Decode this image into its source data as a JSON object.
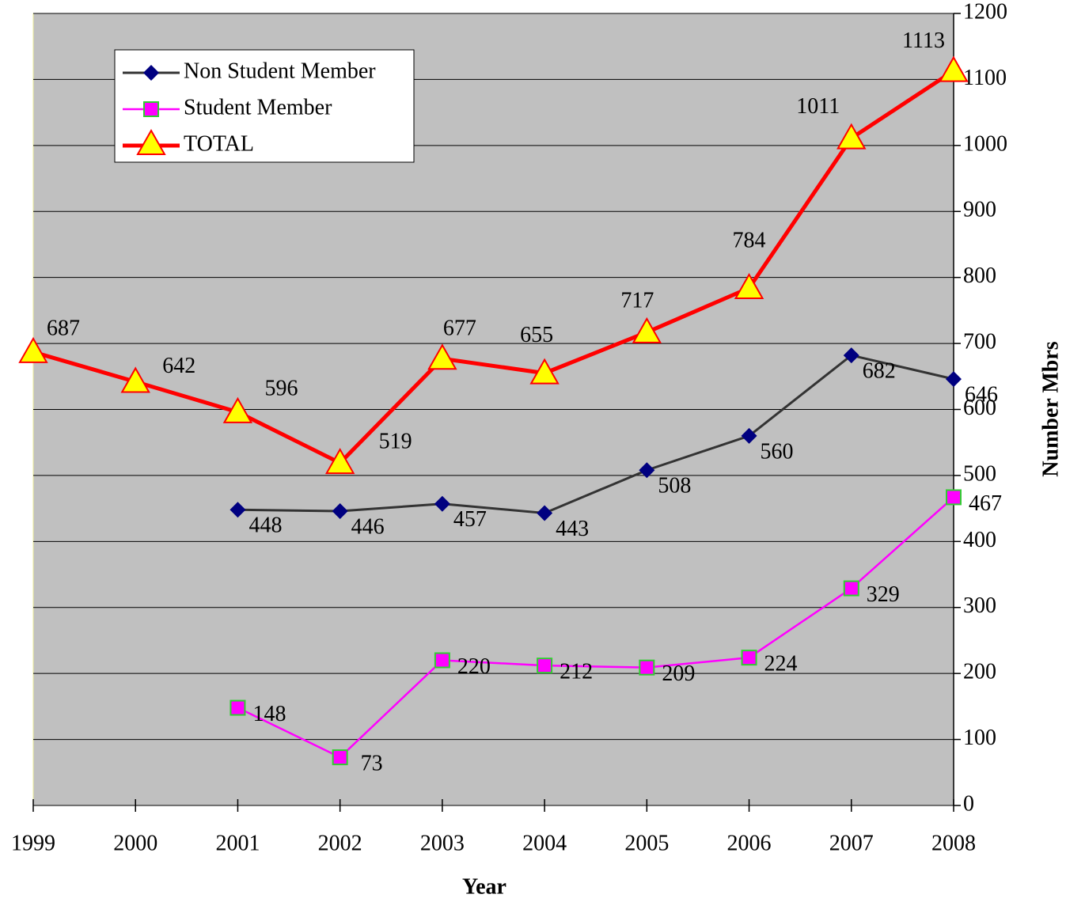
{
  "chart_data": {
    "type": "line",
    "xlabel": "Year",
    "ylabel": "Number Mbrs",
    "x": [
      1999,
      2000,
      2001,
      2002,
      2003,
      2004,
      2005,
      2006,
      2007,
      2008
    ],
    "xlim": [
      1999,
      2008
    ],
    "xticks": [
      1999,
      2000,
      2001,
      2002,
      2003,
      2004,
      2005,
      2006,
      2007,
      2008
    ],
    "ylim": [
      0,
      1200
    ],
    "yticks": [
      0,
      100,
      200,
      300,
      400,
      500,
      600,
      700,
      800,
      900,
      1000,
      1100,
      1200
    ],
    "grid": true,
    "legend": "upper left",
    "series": [
      {
        "name": "Non Student Member",
        "color": "#000080",
        "values": [
          null,
          null,
          448,
          446,
          457,
          443,
          508,
          560,
          682,
          646
        ]
      },
      {
        "name": "Student Member",
        "color": "#ff00ff",
        "values": [
          null,
          null,
          148,
          73,
          220,
          212,
          209,
          224,
          329,
          467
        ]
      },
      {
        "name": "TOTAL",
        "color": "#ff0000",
        "values": [
          687,
          642,
          596,
          519,
          677,
          655,
          717,
          784,
          1011,
          1113
        ]
      }
    ]
  }
}
